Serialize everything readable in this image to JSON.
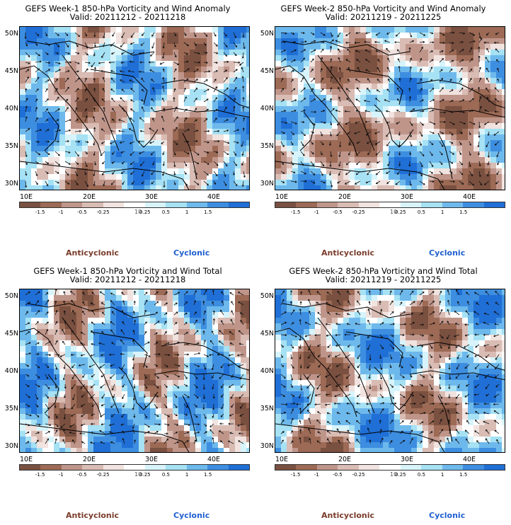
{
  "panels": [
    {
      "title_line1": "GEFS Week-1 850-hPa Vorticity and Wind Anomaly",
      "title_line2": "Valid: 20211212 - 20211218"
    },
    {
      "title_line1": "GEFS Week-2 850-hPa Vorticity and Wind Anomaly",
      "title_line2": "Valid: 20211219 - 20211225"
    },
    {
      "title_line1": "GEFS Week-1 850-hPa Vorticity and Wind Total",
      "title_line2": "Valid: 20211212 - 20211218"
    },
    {
      "title_line1": "GEFS Week-2 850-hPa Vorticity and Wind Total",
      "title_line2": "Valid: 20211219 - 20211225"
    }
  ],
  "axes": {
    "y_labels": [
      "50N",
      "45N",
      "40N",
      "35N",
      "30N"
    ],
    "x_labels": [
      "10E",
      "20E",
      "30E",
      "40E"
    ]
  },
  "colorbar": {
    "ticks": [
      "-1.5",
      "-1",
      "-0.5",
      "-0.25",
      "0.25",
      "0.5",
      "1",
      "1.5"
    ],
    "unit": "10",
    "colors": [
      "#7a5040",
      "#9c6a55",
      "#bf958a",
      "#d9bcb4",
      "#f1e3df",
      "#ffffff",
      "#d8f4fb",
      "#a6e1f4",
      "#6eb9ec",
      "#3d8ee0",
      "#1f6fd6"
    ]
  },
  "legend": {
    "anticyclonic": "Anticyclonic",
    "cyclonic": "Cyclonic",
    "anticyclonic_color": "#7a3b2a",
    "cyclonic_color": "#1f5fd0"
  }
}
